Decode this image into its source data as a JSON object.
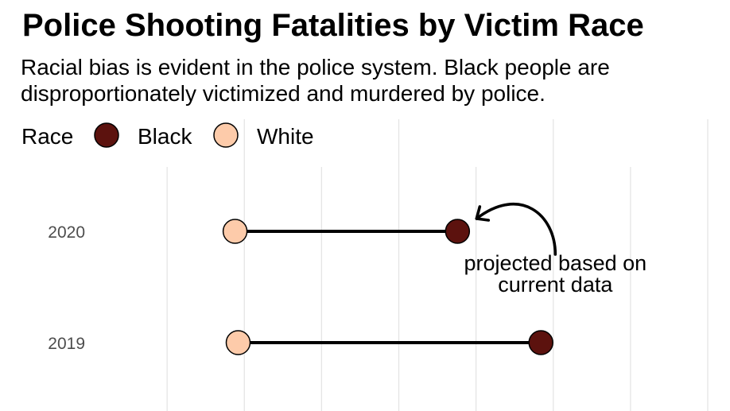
{
  "chart_data": {
    "type": "dumbbell",
    "title": "Police Shooting Fatalities by Victim Race",
    "subtitle": "Racial bias is evident in the police system. Black people are disproportionately victimized and murdered by police.",
    "legend": {
      "title": "Race",
      "position": "top-left",
      "entries": [
        {
          "name": "Black",
          "color": "#5c120e"
        },
        {
          "name": "White",
          "color": "#fdcbaa"
        }
      ]
    },
    "categories": [
      "2020",
      "2019"
    ],
    "series": [
      {
        "name": "White",
        "values": [
          1.44,
          1.46
        ]
      },
      {
        "name": "Black",
        "values": [
          2.88,
          3.42
        ]
      }
    ],
    "xlim": [
      0.5,
      4.5
    ],
    "x_gridlines": [
      1,
      1.5,
      2,
      2.5,
      3,
      3.5,
      4,
      4.5
    ],
    "x_axis_labels_shown": false,
    "grid": true,
    "connector_color": "#000000",
    "annotation": {
      "lines": [
        "projected based on",
        "current data"
      ],
      "target_category": "2020",
      "target_series": "Black"
    }
  }
}
